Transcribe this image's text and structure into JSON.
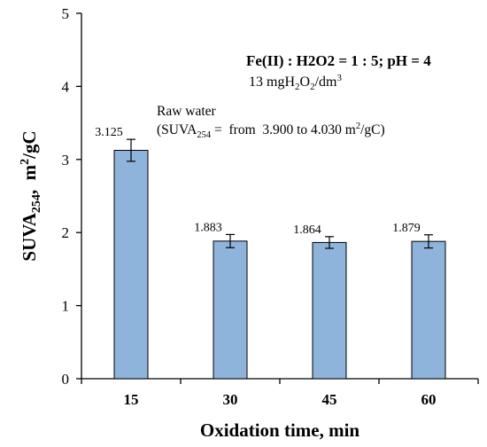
{
  "chart_data": {
    "type": "bar",
    "categories": [
      "15",
      "30",
      "45",
      "60"
    ],
    "values": [
      3.125,
      1.883,
      1.864,
      1.879
    ],
    "errors": [
      0.15,
      0.09,
      0.08,
      0.09
    ],
    "data_labels": [
      "3.125",
      "1.883",
      "1.864",
      "1.879"
    ],
    "ylim": [
      0,
      5
    ],
    "yticks": [
      "0",
      "1",
      "2",
      "3",
      "4",
      "5"
    ],
    "xlabel": "Oxidation time, min",
    "ylabel": {
      "main": "SUVA",
      "sub": "254",
      "sep": ",  ",
      "unit": "m",
      "unit_sup": "2",
      "unit_rest": "/gC"
    },
    "grid": false,
    "colors": {
      "bar_fill": "#8eb4dc",
      "bar_stroke": "#000000",
      "axis": "#000000"
    }
  },
  "annotations": {
    "condition_line1": "Fe(II) : H2O2 = 1 : 5; pH = 4",
    "condition_line2": {
      "a": "13 mgH",
      "s1": "2",
      "b": "O",
      "s2": "2",
      "c": "/dm",
      "s3": "3"
    },
    "raw_water_line1": "Raw water",
    "raw_water_line2": {
      "a": "(SUVA",
      "s1": "254",
      "b": " =  from  3.900 to 4.030 m",
      "s2": "2",
      "c": "/gC)"
    }
  }
}
